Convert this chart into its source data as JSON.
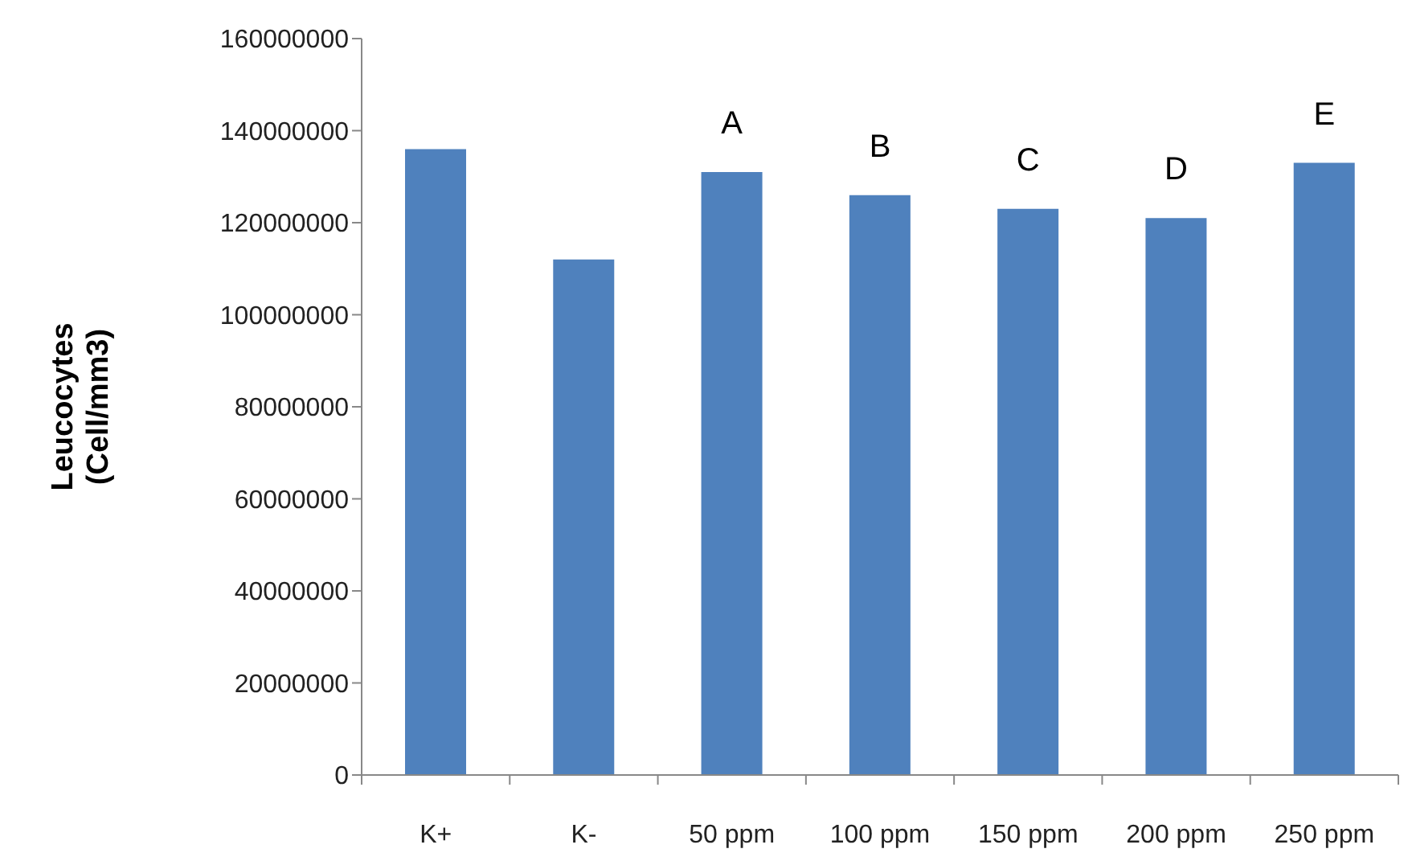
{
  "chart_data": {
    "type": "bar",
    "ylabel": "Leucocytes (Cell/mm3)",
    "categories": [
      "K+",
      "K-",
      "50 ppm",
      "100 ppm",
      "150 ppm",
      "200 ppm",
      "250 ppm"
    ],
    "values": [
      136000000,
      112000000,
      131000000,
      126000000,
      123000000,
      121000000,
      133000000
    ],
    "color": "#4f81bd",
    "ylim": [
      0,
      160000000
    ],
    "yticks": [
      0,
      20000000,
      40000000,
      60000000,
      80000000,
      100000000,
      120000000,
      140000000,
      160000000
    ],
    "grid": false,
    "legend": false,
    "annotations": [
      {
        "text": "A",
        "x": "50 ppm",
        "y": 131000000
      },
      {
        "text": "B",
        "x": "100 ppm",
        "y": 126000000
      },
      {
        "text": "C",
        "x": "150 ppm",
        "y": 123000000
      },
      {
        "text": "D",
        "x": "200 ppm",
        "y": 121000000
      },
      {
        "text": "E",
        "x": "250 ppm",
        "y": 133000000
      }
    ]
  }
}
